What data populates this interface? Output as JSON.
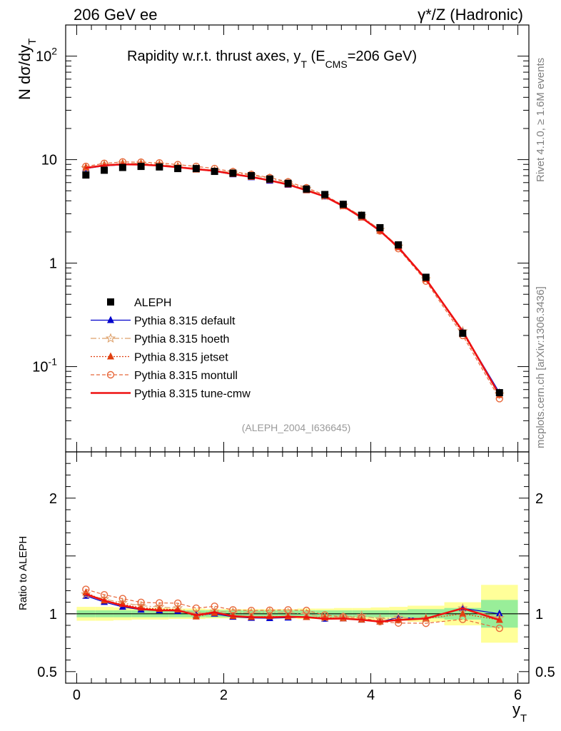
{
  "header": {
    "left": "206 GeV ee",
    "right": "γ*/Z (Hadronic)",
    "watermark": "(ALEPH_2004_I636645)",
    "side_top": "Rivet 4.1.0, ≥ 1.6M events",
    "side_bottom": "mcplots.cern.ch [arXiv:1306.3436]"
  },
  "chart_data": {
    "type": "line",
    "title": "Rapidity w.r.t. thrust axes, y_T (E_CMS=206 GeV)",
    "title_parts": {
      "main": "Rapidity w.r.t. thrust axes, y",
      "sub": "T",
      "mid": " (E",
      "sub2": "CMS",
      "tail": "=206 GeV)"
    },
    "ylabel": {
      "main": "N  dσ/dy",
      "sub": "T"
    },
    "xlabel": {
      "main": "y",
      "sub": "T"
    },
    "ratio_ylabel": "Ratio to ALEPH",
    "xlim": [
      -0.15,
      6.15
    ],
    "ylim": [
      0.015,
      200
    ],
    "ratio_ylim": [
      0.4,
      2.4
    ],
    "yscale": "log",
    "x_ticks": [
      "0",
      "2",
      "4",
      "6"
    ],
    "y_ticks": [
      "10^-1",
      "1",
      "10",
      "10^2"
    ],
    "ratio_ticks": [
      "0.5",
      "1",
      "2"
    ],
    "x": [
      0.125,
      0.375,
      0.625,
      0.875,
      1.125,
      1.375,
      1.625,
      1.875,
      2.125,
      2.375,
      2.625,
      2.875,
      3.125,
      3.375,
      3.625,
      3.875,
      4.125,
      4.375,
      4.75,
      5.25,
      5.75
    ],
    "bin_edges": [
      0.0,
      0.25,
      0.5,
      0.75,
      1.0,
      1.25,
      1.5,
      1.75,
      2.0,
      2.25,
      2.5,
      2.75,
      3.0,
      3.25,
      3.5,
      3.75,
      4.0,
      4.25,
      4.5,
      5.0,
      5.5,
      6.0
    ],
    "stat_band": [
      0.03,
      0.03,
      0.03,
      0.03,
      0.03,
      0.03,
      0.03,
      0.03,
      0.03,
      0.03,
      0.03,
      0.03,
      0.03,
      0.03,
      0.03,
      0.03,
      0.03,
      0.03,
      0.04,
      0.05,
      0.12
    ],
    "total_band": [
      0.06,
      0.06,
      0.055,
      0.05,
      0.05,
      0.045,
      0.045,
      0.04,
      0.04,
      0.04,
      0.04,
      0.04,
      0.045,
      0.045,
      0.05,
      0.05,
      0.055,
      0.06,
      0.07,
      0.1,
      0.25
    ],
    "series": [
      {
        "name": "ALEPH",
        "color": "#000000",
        "marker": "square",
        "style": "none",
        "values": [
          7.1,
          7.9,
          8.4,
          8.6,
          8.5,
          8.2,
          8.2,
          7.7,
          7.4,
          7.0,
          6.5,
          5.9,
          5.2,
          4.6,
          3.7,
          2.9,
          2.2,
          1.5,
          0.73,
          0.21,
          0.056
        ]
      },
      {
        "name": "Pythia 8.315 default",
        "color": "#0000cc",
        "marker": "triangle",
        "style": "solid",
        "values": [
          8.2,
          8.7,
          8.9,
          8.9,
          8.75,
          8.4,
          8.1,
          7.7,
          7.2,
          6.75,
          6.25,
          5.7,
          5.05,
          4.4,
          3.55,
          2.75,
          2.05,
          1.45,
          0.7,
          0.22,
          0.056
        ]
      },
      {
        "name": "Pythia 8.315 hoeth",
        "color": "#dda06a",
        "marker": "star",
        "style": "dashdot",
        "values": [
          8.3,
          8.9,
          9.2,
          9.2,
          9.0,
          8.6,
          8.2,
          7.85,
          7.5,
          7.05,
          6.6,
          5.95,
          5.2,
          4.45,
          3.6,
          2.85,
          2.1,
          1.45,
          0.7,
          0.22,
          0.054
        ]
      },
      {
        "name": "Pythia 8.315 jetset",
        "color": "#e04010",
        "marker": "triangle",
        "style": "dotted",
        "values": [
          8.4,
          8.8,
          9.1,
          9.05,
          8.85,
          8.5,
          8.0,
          7.75,
          7.25,
          6.8,
          6.35,
          5.75,
          5.05,
          4.45,
          3.55,
          2.75,
          2.05,
          1.42,
          0.7,
          0.21,
          0.053
        ]
      },
      {
        "name": "Pythia 8.315 montull",
        "color": "#e8673a",
        "marker": "circle",
        "style": "dashed",
        "values": [
          8.6,
          9.2,
          9.5,
          9.45,
          9.3,
          8.95,
          8.6,
          8.2,
          7.65,
          7.2,
          6.7,
          6.1,
          5.35,
          4.55,
          3.6,
          2.8,
          2.05,
          1.38,
          0.67,
          0.2,
          0.049
        ]
      },
      {
        "name": "Pythia 8.315 tune-cmw",
        "color": "#ee1111",
        "marker": "none",
        "style": "solid-thick",
        "values": [
          8.3,
          8.8,
          9.0,
          8.95,
          8.75,
          8.45,
          8.1,
          7.8,
          7.25,
          6.8,
          6.3,
          5.75,
          5.05,
          4.4,
          3.55,
          2.75,
          2.05,
          1.42,
          0.7,
          0.22,
          0.053
        ]
      }
    ]
  }
}
